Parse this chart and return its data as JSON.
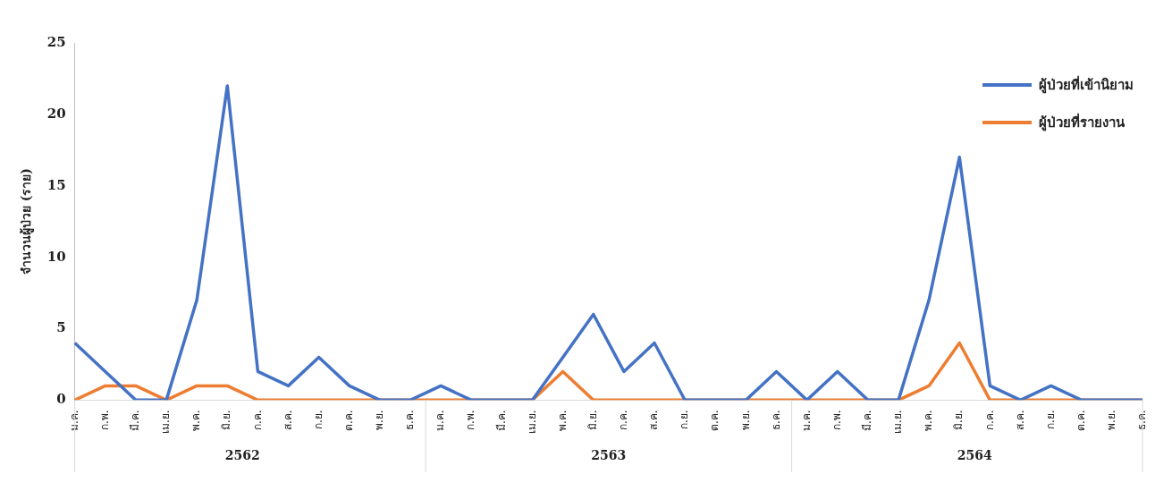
{
  "chart_data": {
    "type": "line",
    "ylabel": "จำนวนผู้ป่วย (ราย)",
    "categories": [
      "ม.ค.",
      "ก.พ.",
      "มี.ค.",
      "เม.ย.",
      "พ.ค.",
      "มิ.ย.",
      "ก.ค.",
      "ส.ค.",
      "ก.ย.",
      "ต.ค.",
      "พ.ย.",
      "ธ.ค.",
      "ม.ค.",
      "ก.พ.",
      "มี.ค.",
      "เม.ย.",
      "พ.ค.",
      "มิ.ย.",
      "ก.ค.",
      "ส.ค.",
      "ก.ย.",
      "ต.ค.",
      "พ.ย.",
      "ธ.ค.",
      "ม.ค.",
      "ก.พ.",
      "มี.ค.",
      "เม.ย.",
      "พ.ค.",
      "มิ.ย.",
      "ก.ค.",
      "ส.ค.",
      "ก.ย.",
      "ต.ค.",
      "พ.ย.",
      "ธ.ค."
    ],
    "series": [
      {
        "name": "ผู้ป่วยที่เข้านิยาม",
        "color": "#4472c4",
        "values": [
          4,
          2,
          0,
          0,
          7,
          22,
          2,
          1,
          3,
          1,
          0,
          0,
          1,
          0,
          0,
          0,
          3,
          6,
          2,
          4,
          0,
          0,
          0,
          2,
          0,
          2,
          0,
          0,
          7,
          17,
          1,
          0,
          1,
          0,
          0,
          0
        ]
      },
      {
        "name": "ผู้ป่วยที่รายงาน",
        "color": "#ed7d31",
        "values": [
          0,
          1,
          1,
          0,
          1,
          1,
          0,
          0,
          0,
          0,
          0,
          0,
          0,
          0,
          0,
          0,
          2,
          0,
          0,
          0,
          0,
          0,
          0,
          0,
          0,
          0,
          0,
          0,
          1,
          4,
          0,
          0,
          0,
          0,
          0,
          0
        ]
      }
    ],
    "annotations": [
      "2562",
      "2563",
      "2564"
    ],
    "ylim": [
      0,
      25
    ],
    "yticks": [
      0,
      5,
      10,
      15,
      20,
      25
    ],
    "grid": false,
    "legend": "top right",
    "marker": "none",
    "line_style": "solid"
  }
}
